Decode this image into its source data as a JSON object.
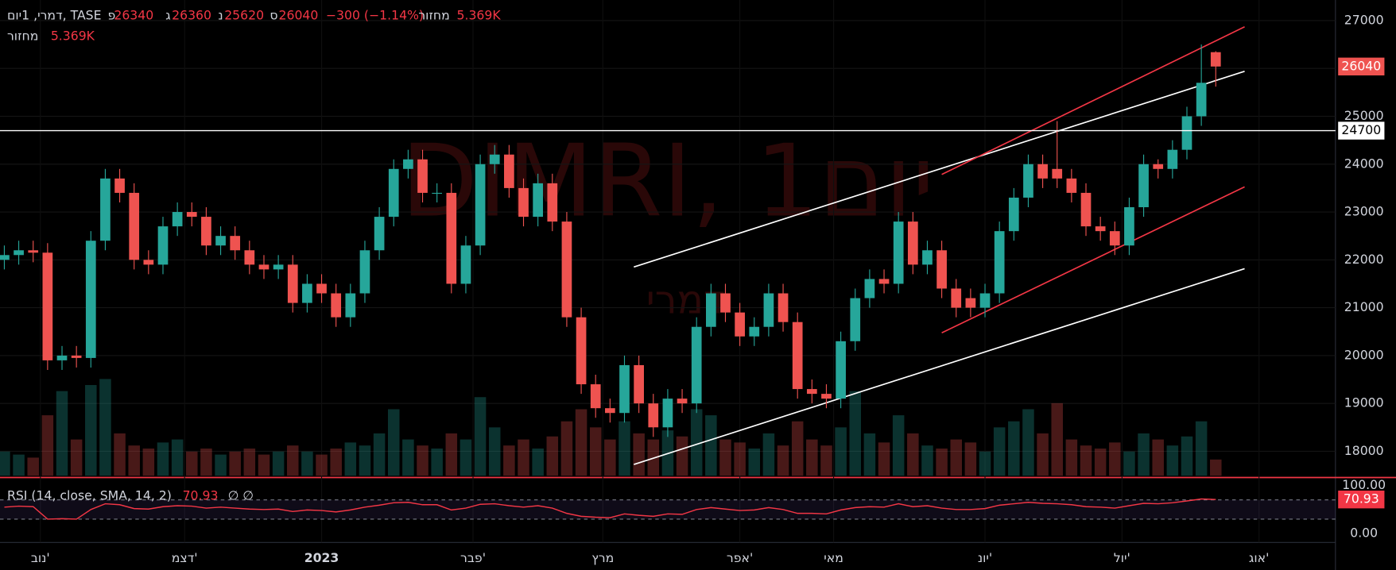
{
  "header": {
    "symbol": "דמרי, 1יום, TASE",
    "open_letter": "פ",
    "high_letter": "ג",
    "low_letter": "נ",
    "close_letter": "ס",
    "change": "−300 (−1.14%)",
    "volume_title": "מחזור",
    "volume_label": "5.369K"
  },
  "chart_data": {
    "type": "candlestick",
    "watermark": "DIMRI, 1יום",
    "watermark_sub": "דמרי",
    "categories": [
      null,
      null,
      null,
      null,
      null,
      null,
      null,
      null,
      null,
      null,
      null,
      null,
      null,
      null,
      null,
      null,
      null,
      null,
      null,
      null,
      null,
      null,
      null,
      null,
      null,
      null,
      null,
      null,
      null,
      null,
      null,
      null,
      null,
      null,
      null,
      null,
      null,
      null,
      null,
      null,
      null,
      null,
      null,
      null,
      null,
      null,
      null,
      null,
      null,
      null,
      null,
      null,
      null,
      null,
      null,
      null,
      null,
      null,
      null,
      null,
      null,
      null,
      null,
      null,
      null,
      null,
      null,
      null,
      null,
      null,
      null,
      null,
      null,
      null,
      null,
      null,
      null,
      null,
      null,
      null,
      null,
      null,
      null,
      null,
      null
    ],
    "open": [
      22000,
      22100,
      22200,
      22150,
      19900,
      20000,
      19950,
      22400,
      23700,
      23400,
      22000,
      21900,
      22700,
      23000,
      22900,
      22300,
      22500,
      22200,
      21900,
      21800,
      21900,
      21100,
      21500,
      21300,
      20800,
      21300,
      22200,
      22900,
      23900,
      24100,
      23400,
      23400,
      21500,
      22300,
      24000,
      24200,
      23500,
      22900,
      23600,
      22800,
      20800,
      19400,
      18900,
      18800,
      19800,
      19000,
      18500,
      19100,
      19000,
      20600,
      21300,
      20900,
      20400,
      20600,
      21300,
      20700,
      19300,
      19200,
      19100,
      20300,
      21200,
      21600,
      21500,
      22800,
      21900,
      22200,
      21400,
      21200,
      21000,
      21300,
      22600,
      23300,
      24000,
      23900,
      23700,
      23400,
      22700,
      22600,
      22300,
      23100,
      24000,
      23900,
      24300,
      25000,
      26340
    ],
    "high": [
      22300,
      22400,
      22400,
      22350,
      20200,
      20200,
      22600,
      23900,
      23900,
      23600,
      22200,
      22900,
      23200,
      23200,
      23100,
      22700,
      22700,
      22400,
      22100,
      22100,
      22100,
      21700,
      21700,
      21500,
      21500,
      22400,
      23100,
      24100,
      24300,
      24300,
      23600,
      23600,
      22500,
      24200,
      24400,
      24400,
      23700,
      23800,
      23800,
      23000,
      21000,
      19600,
      19100,
      20000,
      20000,
      19200,
      19300,
      19300,
      20800,
      21500,
      21500,
      21100,
      20800,
      21500,
      21500,
      20900,
      19500,
      19400,
      20500,
      21400,
      21800,
      21800,
      23000,
      23000,
      22400,
      22400,
      21600,
      21400,
      21500,
      22800,
      23500,
      24200,
      24200,
      24900,
      23900,
      23600,
      22900,
      22800,
      23300,
      24200,
      24100,
      24500,
      25200,
      26500,
      26360
    ],
    "low": [
      21800,
      21900,
      21950,
      19700,
      19700,
      19750,
      19750,
      22200,
      23200,
      21800,
      21700,
      21700,
      22500,
      22700,
      22100,
      22100,
      22000,
      21700,
      21600,
      21600,
      20900,
      20900,
      21100,
      20600,
      20600,
      21100,
      22000,
      22700,
      23700,
      23200,
      23200,
      21300,
      21300,
      22100,
      23800,
      23300,
      22700,
      22700,
      22600,
      20600,
      19200,
      18700,
      18600,
      18600,
      18800,
      18300,
      18300,
      18800,
      18800,
      20400,
      20700,
      20200,
      20200,
      20400,
      20500,
      19100,
      19000,
      18900,
      18900,
      20100,
      21000,
      21300,
      21300,
      21700,
      21700,
      21200,
      20800,
      20800,
      20800,
      21100,
      22400,
      23100,
      23500,
      23500,
      23200,
      22500,
      22400,
      22100,
      22100,
      22900,
      23700,
      23700,
      24100,
      24800,
      25620
    ],
    "close": [
      22100,
      22200,
      22150,
      19900,
      20000,
      19950,
      22400,
      23700,
      23400,
      22000,
      21900,
      22700,
      23000,
      22900,
      22300,
      22500,
      22200,
      21900,
      21800,
      21900,
      21100,
      21500,
      21300,
      20800,
      21300,
      22200,
      22900,
      23900,
      24100,
      23400,
      23400,
      21500,
      22300,
      24000,
      24200,
      23500,
      22900,
      23600,
      22800,
      20800,
      19400,
      18900,
      18800,
      19800,
      19000,
      18500,
      19100,
      19000,
      20600,
      21300,
      20900,
      20400,
      20600,
      21300,
      20700,
      19300,
      19200,
      19100,
      20300,
      21200,
      21600,
      21500,
      22800,
      21900,
      22200,
      21400,
      21000,
      21000,
      21300,
      22600,
      23300,
      24000,
      23700,
      23700,
      23400,
      22700,
      22600,
      22300,
      23100,
      24000,
      23900,
      24300,
      25000,
      25700,
      26040
    ],
    "volume": [
      8,
      7,
      6,
      20,
      28,
      12,
      30,
      32,
      14,
      10,
      9,
      11,
      12,
      8,
      9,
      7,
      8,
      9,
      7,
      8,
      10,
      8,
      7,
      9,
      11,
      10,
      14,
      22,
      12,
      10,
      9,
      14,
      12,
      26,
      16,
      10,
      12,
      9,
      13,
      18,
      22,
      16,
      12,
      18,
      14,
      12,
      15,
      13,
      22,
      20,
      12,
      11,
      9,
      14,
      10,
      18,
      12,
      10,
      16,
      28,
      14,
      11,
      20,
      14,
      10,
      9,
      12,
      11,
      8,
      16,
      18,
      22,
      14,
      24,
      12,
      10,
      9,
      11,
      8,
      14,
      12,
      10,
      13,
      18,
      5.369
    ],
    "up_color": "#26a69a",
    "down_color": "#ef5350",
    "xlim": [
      -0.3,
      92.3
    ],
    "xticks": [
      {
        "value": 2.5,
        "label": "נוב'"
      },
      {
        "value": 12.5,
        "label": "דצמ'"
      },
      {
        "value": 22,
        "label": "2023"
      },
      {
        "value": 32.5,
        "label": "פבר'"
      },
      {
        "value": 41.5,
        "label": "מרץ"
      },
      {
        "value": 51,
        "label": "אפר'"
      },
      {
        "value": 57.5,
        "label": "מאי"
      },
      {
        "value": 68,
        "label": "יונ'"
      },
      {
        "value": 77.5,
        "label": "יול'"
      },
      {
        "value": 87,
        "label": "אוג'"
      }
    ],
    "ylim": [
      17470,
      27430
    ],
    "yticks": [
      18000,
      19000,
      20000,
      21000,
      22000,
      23000,
      24000,
      25000,
      26000,
      27000
    ],
    "grid": true,
    "hline": 24700,
    "trend_lines": [
      {
        "color": "#ffffff",
        "points": [
          [
            43.65,
            21850
          ],
          [
            86,
            25940
          ]
        ]
      },
      {
        "color": "#f23645",
        "points": [
          [
            65,
            23785
          ],
          [
            86,
            26870
          ]
        ]
      },
      {
        "color": "#ffffff",
        "points": [
          [
            43.65,
            17725
          ],
          [
            86,
            21815
          ]
        ]
      },
      {
        "color": "#f23645",
        "points": [
          [
            65,
            20475
          ],
          [
            86,
            23525
          ]
        ]
      }
    ],
    "rsi": {
      "title": "RSI (14, close, SMA, 14, 2)",
      "extra": "∅ ∅",
      "color": "#f23645",
      "values": [
        55,
        57,
        56,
        30,
        31,
        30,
        50,
        62,
        60,
        52,
        51,
        56,
        58,
        57,
        53,
        55,
        53,
        51,
        50,
        51,
        46,
        49,
        48,
        45,
        49,
        55,
        59,
        64,
        65,
        60,
        60,
        49,
        53,
        61,
        62,
        58,
        55,
        58,
        53,
        42,
        36,
        34,
        33,
        41,
        38,
        36,
        41,
        40,
        50,
        54,
        51,
        48,
        49,
        54,
        50,
        42,
        42,
        41,
        49,
        54,
        56,
        55,
        62,
        56,
        58,
        53,
        50,
        50,
        52,
        59,
        62,
        65,
        63,
        62,
        60,
        56,
        55,
        53,
        58,
        63,
        62,
        64,
        68,
        72,
        70.93
      ],
      "ylim": [
        0,
        100
      ],
      "yticks": [
        {
          "value": 100,
          "label": "100.00"
        },
        {
          "value": 0,
          "label": "0.00"
        }
      ],
      "bands": [
        30,
        70
      ]
    }
  }
}
